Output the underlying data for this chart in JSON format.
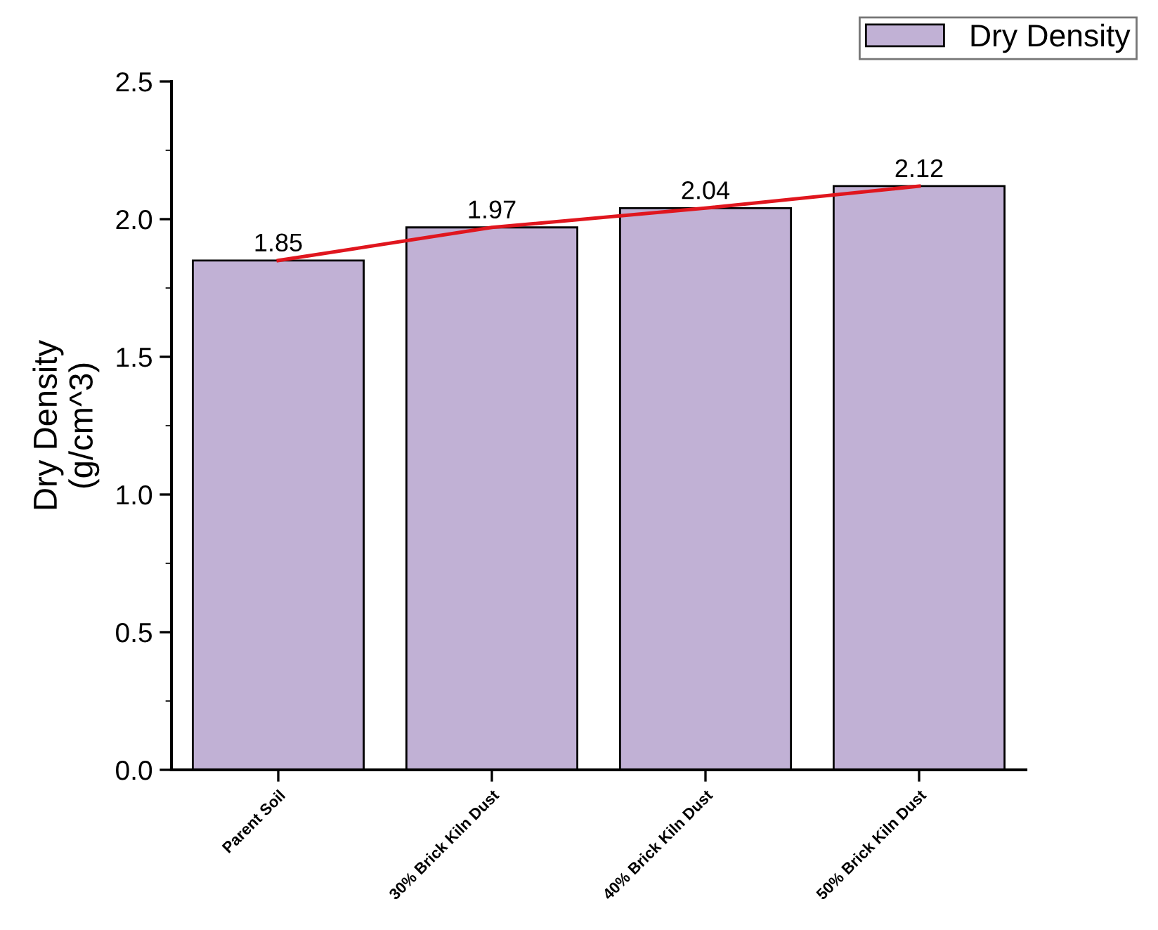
{
  "chart_data": {
    "type": "bar",
    "ylabel": "Dry Density\n(g/cm^3)",
    "categories": [
      "Parent Soil",
      "30% Brick Kiln Dust",
      "40% Brick Kiln Dust",
      "50% Brick Kiln Dust"
    ],
    "series": [
      {
        "name": "Dry Density",
        "color": "#c1b1d5",
        "values": [
          1.85,
          1.97,
          2.04,
          2.12
        ],
        "value_labels": [
          "1.85",
          "1.97",
          "2.04",
          "2.12"
        ]
      },
      {
        "type": "line",
        "color": "#e0161e",
        "values": [
          1.85,
          1.97,
          2.04,
          2.12
        ]
      }
    ],
    "ylim": [
      0,
      2.5
    ],
    "yticks": [
      {
        "value": 0,
        "label": "0.0"
      },
      0.5,
      {
        "value": 1,
        "label": "1.0"
      },
      1.5,
      {
        "value": 2,
        "label": "2.0"
      },
      2.5
    ],
    "grid": false,
    "legend": "top right"
  }
}
